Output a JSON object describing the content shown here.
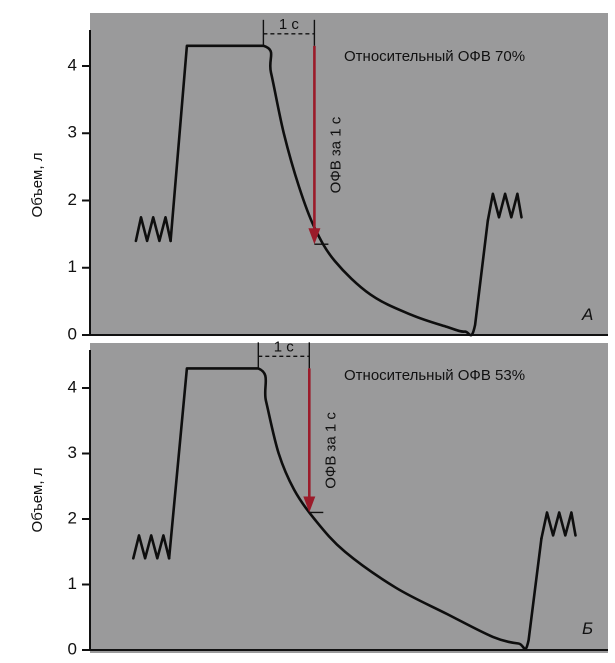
{
  "chart_data": [
    {
      "type": "line",
      "panel_label": "А",
      "annotation": "Относительный ОФВ 70%",
      "ylabel": "Объем, л",
      "yticks": [
        "0",
        "1",
        "2",
        "3",
        "4"
      ],
      "ylim": [
        0,
        4.5
      ],
      "interval_label": "1 с",
      "fev_label": "ОФВ за 1 с",
      "fev_top": 4.3,
      "fev_bottom": 1.35,
      "x_range": [
        0,
        10
      ],
      "breath_in": [
        [
          0.9,
          1.4
        ],
        [
          1.0,
          1.75
        ],
        [
          1.12,
          1.4
        ],
        [
          1.24,
          1.75
        ],
        [
          1.36,
          1.4
        ],
        [
          1.48,
          1.75
        ],
        [
          1.58,
          1.4
        ]
      ],
      "trace": [
        [
          1.58,
          1.4
        ],
        [
          1.9,
          4.3
        ],
        [
          3.4,
          4.3
        ],
        [
          3.55,
          3.9
        ],
        [
          3.8,
          3.0
        ],
        [
          4.1,
          2.2
        ],
        [
          4.4,
          1.6
        ],
        [
          4.8,
          1.1
        ],
        [
          5.5,
          0.6
        ],
        [
          6.3,
          0.3
        ],
        [
          7.0,
          0.12
        ],
        [
          7.35,
          0.05
        ],
        [
          7.55,
          0.15
        ],
        [
          7.8,
          1.7
        ]
      ],
      "breath_out": [
        [
          7.8,
          1.7
        ],
        [
          7.9,
          2.1
        ],
        [
          8.02,
          1.75
        ],
        [
          8.14,
          2.1
        ],
        [
          8.26,
          1.75
        ],
        [
          8.38,
          2.1
        ],
        [
          8.46,
          1.75
        ]
      ],
      "interval_x": [
        3.4,
        4.4
      ]
    },
    {
      "type": "line",
      "panel_label": "Б",
      "annotation": "Относительный ОФВ 53%",
      "ylabel": "Объем, л",
      "yticks": [
        "0",
        "1",
        "2",
        "3",
        "4"
      ],
      "ylim": [
        0,
        4.5
      ],
      "interval_label": "1 с",
      "fev_label": "ОФВ за 1 с",
      "fev_top": 4.3,
      "fev_bottom": 2.1,
      "x_range": [
        0,
        10
      ],
      "breath_in": [
        [
          0.85,
          1.4
        ],
        [
          0.96,
          1.75
        ],
        [
          1.08,
          1.4
        ],
        [
          1.2,
          1.75
        ],
        [
          1.32,
          1.4
        ],
        [
          1.44,
          1.75
        ],
        [
          1.55,
          1.4
        ]
      ],
      "trace": [
        [
          1.55,
          1.4
        ],
        [
          1.9,
          4.3
        ],
        [
          3.3,
          4.3
        ],
        [
          3.45,
          3.8
        ],
        [
          3.7,
          3.0
        ],
        [
          4.0,
          2.45
        ],
        [
          4.4,
          2.0
        ],
        [
          5.0,
          1.5
        ],
        [
          6.0,
          0.95
        ],
        [
          7.0,
          0.55
        ],
        [
          7.9,
          0.2
        ],
        [
          8.4,
          0.1
        ],
        [
          8.6,
          0.15
        ],
        [
          8.85,
          1.7
        ]
      ],
      "breath_out": [
        [
          8.85,
          1.7
        ],
        [
          8.96,
          2.1
        ],
        [
          9.08,
          1.75
        ],
        [
          9.2,
          2.1
        ],
        [
          9.32,
          1.75
        ],
        [
          9.44,
          2.1
        ],
        [
          9.52,
          1.75
        ]
      ],
      "interval_x": [
        3.3,
        4.3
      ]
    }
  ]
}
